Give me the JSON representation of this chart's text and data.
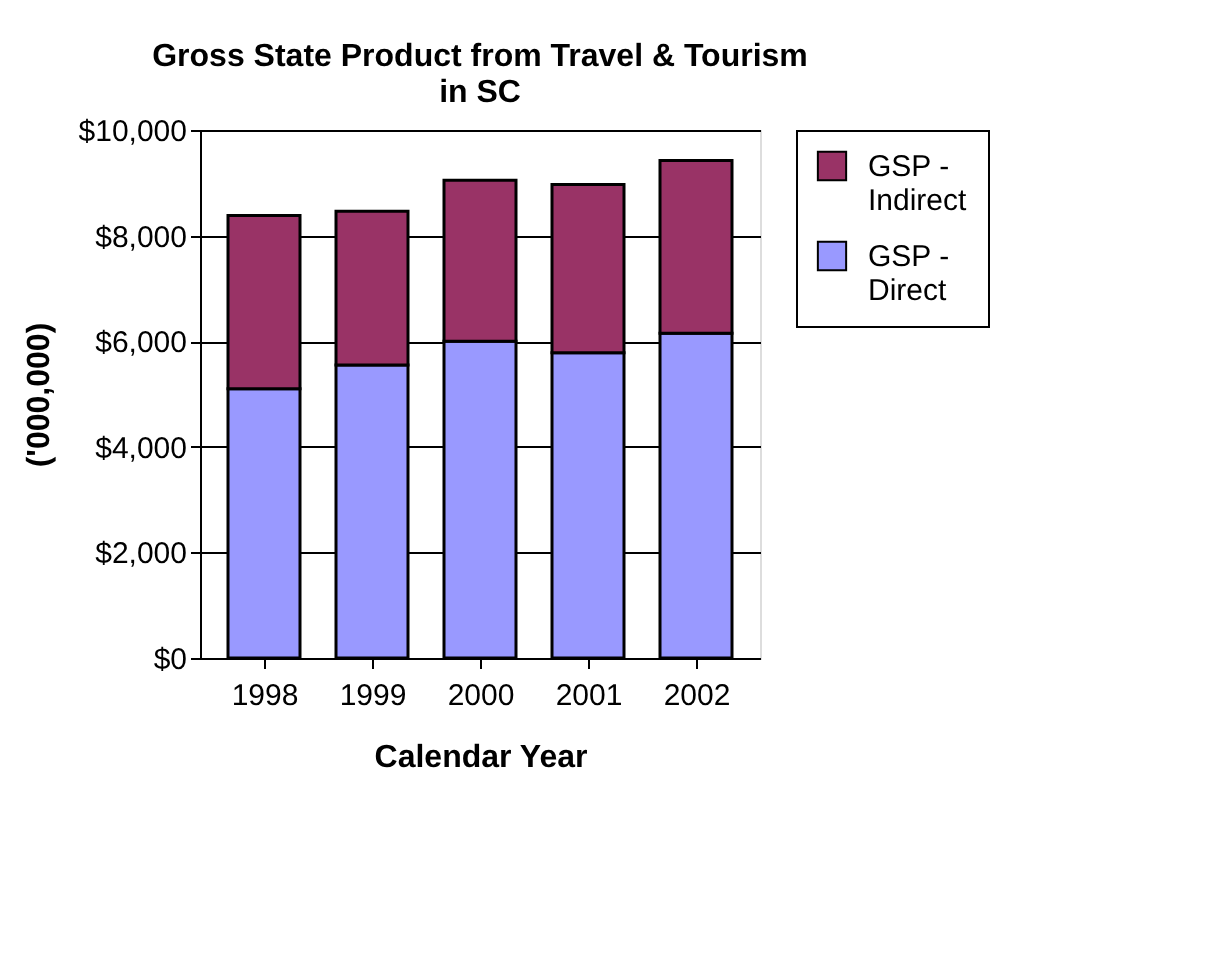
{
  "chart_data": {
    "type": "bar",
    "title": "Gross State Product from Travel & Tourism in SC",
    "xlabel": "Calendar Year",
    "ylabel": "('000,000)",
    "categories": [
      "1998",
      "1999",
      "2000",
      "2001",
      "2002"
    ],
    "stacked": true,
    "series": [
      {
        "name": "GSP - Direct",
        "color": "#9999ff",
        "values": [
          5100,
          5550,
          6000,
          5780,
          6150
        ]
      },
      {
        "name": "GSP - Indirect",
        "color": "#993366",
        "values": [
          3280,
          2910,
          3050,
          3190,
          3270
        ]
      }
    ],
    "ylim": [
      0,
      10000
    ],
    "yticks": [
      {
        "value": 0,
        "label": "$0"
      },
      {
        "value": 2000,
        "label": "$2,000"
      },
      {
        "value": 4000,
        "label": "$4,000"
      },
      {
        "value": 6000,
        "label": "$6,000"
      },
      {
        "value": 8000,
        "label": "$8,000"
      },
      {
        "value": 10000,
        "label": "$10,000"
      }
    ],
    "grid": "y",
    "legend": "right"
  }
}
